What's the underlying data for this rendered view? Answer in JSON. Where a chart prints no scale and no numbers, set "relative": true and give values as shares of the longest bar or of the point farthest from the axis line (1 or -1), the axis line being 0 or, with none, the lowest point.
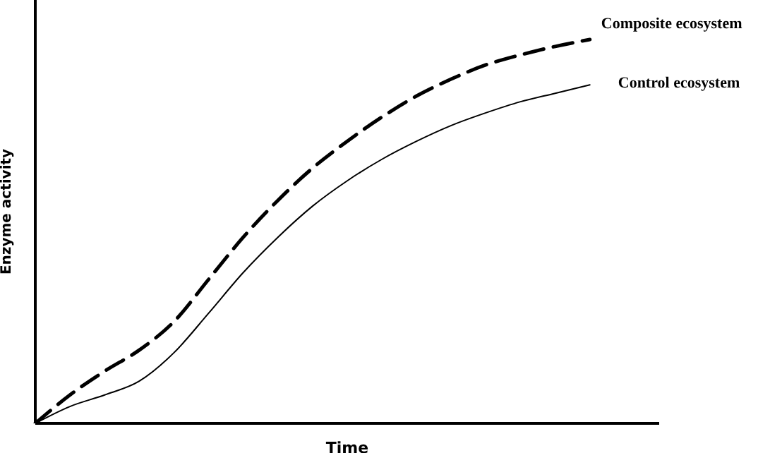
{
  "chart_data": {
    "type": "line",
    "relative": true,
    "xlabel": "Time",
    "ylabel": "Enzyme activity",
    "legend": false,
    "grid": false,
    "marker": "none",
    "categories": [
      null,
      null,
      null,
      null,
      null,
      null,
      null,
      null,
      null,
      null,
      null,
      null,
      null,
      null,
      null,
      null,
      null,
      null,
      null
    ],
    "series": [
      {
        "name": "Composite ecosystem",
        "color": "#000000",
        "line_style": "dashed",
        "values": [
          0,
          0.074,
          0.136,
          0.191,
          0.265,
          0.375,
          0.485,
          0.581,
          0.665,
          0.735,
          0.798,
          0.853,
          0.897,
          0.934,
          0.96,
          0.982,
          1,
          null,
          null
        ]
      },
      {
        "name": "Control ecosystem",
        "color": "#000000",
        "line_style": "solid",
        "values": [
          0,
          0.044,
          0.074,
          0.11,
          0.184,
          0.287,
          0.393,
          0.485,
          0.566,
          0.632,
          0.688,
          0.735,
          0.776,
          0.809,
          0.838,
          0.86,
          0.882,
          null,
          null
        ]
      }
    ]
  }
}
